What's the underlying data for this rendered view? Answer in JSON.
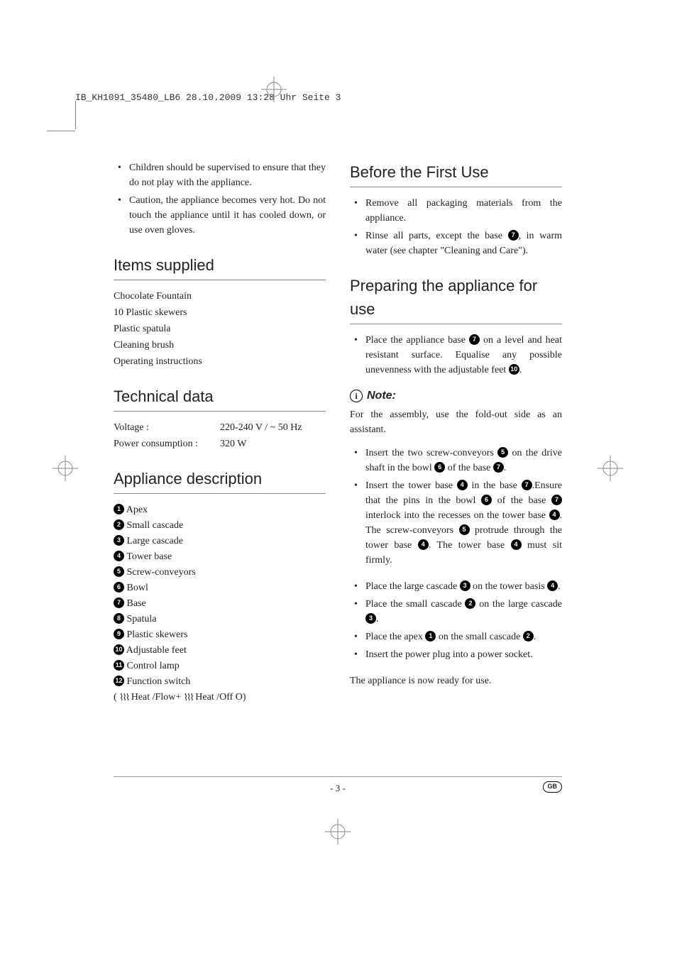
{
  "header_stamp": "IB_KH1091_35480_LB6  28.10.2009  13:28 Uhr  Seite 3",
  "left": {
    "warnings": [
      "Children should be supervised to ensure that they do not play with the appliance.",
      "Caution, the appliance becomes very hot. Do not touch the appliance until it has cooled down, or use oven gloves."
    ],
    "items_heading": "Items supplied",
    "items": [
      "Chocolate Fountain",
      "10 Plastic skewers",
      "Plastic spatula",
      "Cleaning brush",
      "Operating instructions"
    ],
    "tech_heading": "Technical data",
    "tech_rows": [
      {
        "label": "Voltage :",
        "value": "220-240 V / ~ 50 Hz"
      },
      {
        "label": "Power consumption :",
        "value": "320 W"
      }
    ],
    "desc_heading": "Appliance description",
    "desc_items": [
      {
        "n": "1",
        "label": "Apex"
      },
      {
        "n": "2",
        "label": "Small cascade"
      },
      {
        "n": "3",
        "label": "Large cascade"
      },
      {
        "n": "4",
        "label": "Tower base"
      },
      {
        "n": "5",
        "label": "Screw-conveyors"
      },
      {
        "n": "6",
        "label": "Bowl"
      },
      {
        "n": "7",
        "label": "Base"
      },
      {
        "n": "8",
        "label": "Spatula"
      },
      {
        "n": "9",
        "label": "Plastic skewers"
      },
      {
        "n": "10",
        "label": "Adjustable feet"
      },
      {
        "n": "11",
        "label": "Control lamp"
      },
      {
        "n": "12",
        "label": "Function switch"
      }
    ],
    "function_switch_detail_prefix": "Heat /Flow+",
    "function_switch_detail_suffix": "Heat /Off O)"
  },
  "right": {
    "before_heading": "Before the First Use",
    "before_items": [
      {
        "text": "Remove all packaging materials from the appliance."
      },
      {
        "text_parts": [
          "Rinse all parts, except the base ",
          {
            "circ": "7"
          },
          ", in warm water (see chapter \"Cleaning and Care\")."
        ]
      }
    ],
    "prep_heading": "Preparing the appliance for use",
    "prep_first": {
      "text_parts": [
        "Place the appliance base ",
        {
          "circ": "7"
        },
        " on a level and heat resistant surface. Equalise any possible unevenness with the adjustable feet ",
        {
          "circ": "10"
        },
        "."
      ]
    },
    "note_label": "Note:",
    "note_text": "For the assembly, use the fold-out side as an assistant.",
    "prep_steps_a": [
      {
        "text_parts": [
          "Insert the two screw-conveyors ",
          {
            "circ": "5"
          },
          " on the drive shaft in the bowl ",
          {
            "circ": "6"
          },
          " of the base ",
          {
            "circ": "7"
          },
          "."
        ]
      },
      {
        "text_parts": [
          "Insert the tower base ",
          {
            "circ": "4"
          },
          " in the base ",
          {
            "circ": "7"
          },
          ".Ensure that the pins in the bowl ",
          {
            "circ": "6"
          },
          " of the base ",
          {
            "circ": "7"
          },
          " interlock into the recesses on the tower base ",
          {
            "circ": "4"
          },
          ". The screw-conveyors ",
          {
            "circ": "5"
          },
          " protrude through the tower base ",
          {
            "circ": "4"
          },
          ". The tower base ",
          {
            "circ": "4"
          },
          " must sit firmly."
        ]
      }
    ],
    "prep_steps_b": [
      {
        "text_parts": [
          "Place the large cascade ",
          {
            "circ": "3"
          },
          " on the tower basis ",
          {
            "circ": "4"
          },
          "."
        ]
      },
      {
        "text_parts": [
          "Place the small cascade ",
          {
            "circ": "2"
          },
          " on the large cascade ",
          {
            "circ": "3"
          },
          "."
        ]
      },
      {
        "text_parts": [
          "Place the apex ",
          {
            "circ": "1"
          },
          " on the small cascade ",
          {
            "circ": "2"
          },
          "."
        ]
      },
      {
        "text_parts": [
          "Insert the power plug into a power socket."
        ]
      }
    ],
    "ready_text": "The appliance is now ready for use."
  },
  "footer": {
    "page": "- 3 -",
    "country": "GB"
  }
}
